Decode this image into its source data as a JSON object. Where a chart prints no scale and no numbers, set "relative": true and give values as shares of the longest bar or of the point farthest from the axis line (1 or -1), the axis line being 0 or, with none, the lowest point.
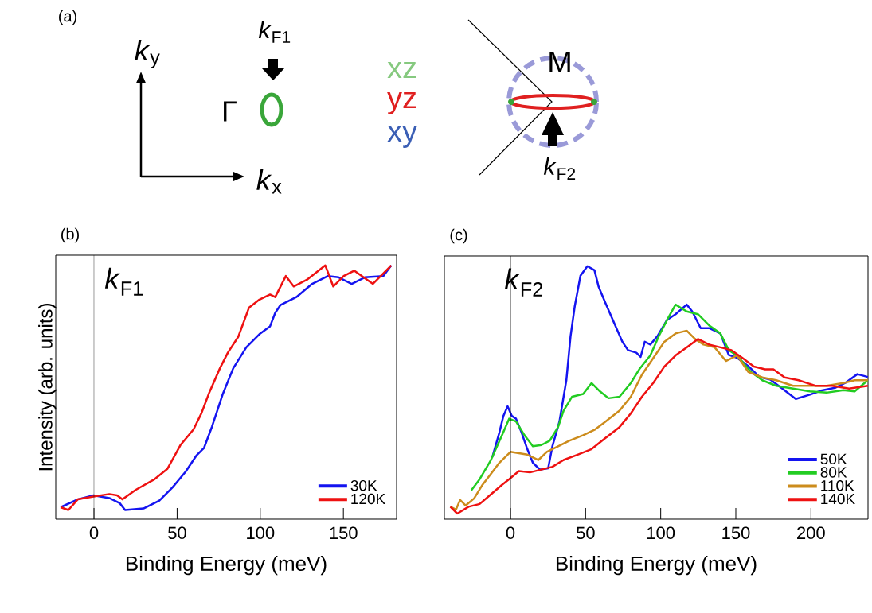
{
  "chart_data": [
    {
      "type": "other",
      "title": "(a)",
      "annotations": [
        "*k*$_{y}$",
        "*k*$_{x}$",
        "Γ",
        "*k*$_{F1}$",
        "xz",
        "yz",
        "xy",
        "M",
        "*k*$_{F2}$"
      ]
    },
    {
      "type": "line",
      "title": "(b)",
      "xlabel": "Binding Energy (meV)",
      "ylabel": "Intensity (arb. units)",
      "relative": true,
      "xlim": [
        -23,
        182
      ],
      "xticks": [
        0,
        50,
        100,
        150
      ],
      "ref_lines": [
        {
          "axis": "x",
          "value": 0
        }
      ],
      "annotations": [
        "*k*$_{F1}$"
      ],
      "legend": "bottom right",
      "series": [
        {
          "name": "30K",
          "color": "#1414f0",
          "x": [
            -20.1,
            -9.8,
            -0.3,
            9.2,
            15.5,
            18.7,
            29.8,
            39.3,
            47.2,
            55.2,
            61.5,
            66.2,
            71.0,
            77.3,
            83.7,
            91.6,
            99.5,
            105.9,
            109.0,
            112.2,
            121.7,
            131.2,
            140.7,
            147.1,
            155.0,
            162.9,
            174.0,
            178.8
          ],
          "values": [
            0.047,
            0.078,
            0.094,
            0.083,
            0.063,
            0.036,
            0.042,
            0.073,
            0.125,
            0.188,
            0.25,
            0.281,
            0.365,
            0.49,
            0.594,
            0.677,
            0.729,
            0.76,
            0.813,
            0.844,
            0.875,
            0.927,
            0.958,
            0.953,
            0.927,
            0.953,
            0.958,
            1.0
          ]
        },
        {
          "name": "120K",
          "color": "#ee1111",
          "x": [
            -20.1,
            -15.4,
            -9.8,
            -0.3,
            9.2,
            13.9,
            17.1,
            25.0,
            36.1,
            44.1,
            52.0,
            59.9,
            64.6,
            69.4,
            75.7,
            80.5,
            86.8,
            93.2,
            99.5,
            105.9,
            109.0,
            115.4,
            120.1,
            128.0,
            139.1,
            143.9,
            150.2,
            156.6,
            167.7,
            178.8
          ],
          "values": [
            0.047,
            0.036,
            0.078,
            0.089,
            0.099,
            0.094,
            0.078,
            0.115,
            0.156,
            0.198,
            0.292,
            0.354,
            0.417,
            0.5,
            0.594,
            0.656,
            0.719,
            0.833,
            0.865,
            0.885,
            0.875,
            0.958,
            0.917,
            0.943,
            1.0,
            0.917,
            0.958,
            0.979,
            0.927,
            1.0
          ]
        }
      ]
    },
    {
      "type": "line",
      "title": "(c)",
      "xlabel": "Binding Energy (meV)",
      "relative": true,
      "xlim": [
        -44,
        238
      ],
      "xticks": [
        0,
        50,
        100,
        150,
        200
      ],
      "ref_lines": [
        {
          "axis": "x",
          "value": 0
        }
      ],
      "annotations": [
        "*k*$_{F2}$"
      ],
      "legend": "bottom right",
      "series": [
        {
          "name": "50K",
          "color": "#1414f0",
          "x": [
            -12.1,
            -7.4,
            -4.7,
            -1.9,
            0.9,
            3.7,
            7.4,
            11.2,
            14.9,
            19.6,
            25.1,
            27.9,
            32.6,
            37.2,
            40.0,
            42.8,
            46.6,
            51.2,
            55.9,
            58.7,
            63.3,
            68.9,
            74.5,
            78.2,
            83.8,
            86.6,
            89.4,
            93.1,
            97.8,
            104.3,
            109.9,
            117.3,
            121.0,
            126.6,
            132.2,
            139.7,
            145.3,
            150.8,
            158.3,
            165.7,
            173.2,
            180.6,
            189.9,
            199.3,
            206.7,
            216.0,
            223.5,
            230.9,
            237.9
          ],
          "values": [
            0.245,
            0.342,
            0.408,
            0.446,
            0.408,
            0.397,
            0.342,
            0.277,
            0.223,
            0.196,
            0.201,
            0.288,
            0.386,
            0.549,
            0.723,
            0.842,
            0.962,
            1.0,
            0.984,
            0.918,
            0.853,
            0.777,
            0.701,
            0.668,
            0.658,
            0.641,
            0.701,
            0.69,
            0.723,
            0.788,
            0.81,
            0.848,
            0.821,
            0.755,
            0.755,
            0.734,
            0.649,
            0.638,
            0.605,
            0.562,
            0.551,
            0.518,
            0.475,
            0.492,
            0.508,
            0.519,
            0.541,
            0.573,
            0.562
          ]
        },
        {
          "name": "80K",
          "color": "#22cc22",
          "x": [
            -26.1,
            -20.5,
            -13.0,
            -5.6,
            -0.9,
            3.7,
            9.3,
            14.9,
            20.5,
            26.1,
            31.7,
            35.4,
            41.0,
            48.4,
            54.0,
            59.6,
            65.2,
            72.6,
            80.1,
            85.7,
            93.1,
            98.7,
            104.3,
            109.9,
            117.3,
            124.8,
            132.2,
            139.7,
            145.3,
            150.8,
            160.1,
            167.6,
            176.9,
            188.1,
            199.3,
            210.4,
            221.6,
            229.1,
            237.9
          ],
          "values": [
            0.114,
            0.158,
            0.234,
            0.332,
            0.397,
            0.386,
            0.332,
            0.288,
            0.293,
            0.31,
            0.364,
            0.429,
            0.484,
            0.495,
            0.538,
            0.505,
            0.478,
            0.484,
            0.538,
            0.592,
            0.647,
            0.723,
            0.788,
            0.848,
            0.821,
            0.81,
            0.766,
            0.734,
            0.668,
            0.647,
            0.582,
            0.549,
            0.527,
            0.516,
            0.505,
            0.5,
            0.51,
            0.505,
            0.549
          ]
        },
        {
          "name": "110K",
          "color": "#cc8c1c",
          "x": [
            -40.0,
            -36.3,
            -33.5,
            -29.8,
            -24.2,
            -18.6,
            -13.0,
            -7.4,
            0,
            5.6,
            11.2,
            18.6,
            24.2,
            31.7,
            39.1,
            48.4,
            55.9,
            63.3,
            72.6,
            80.1,
            87.5,
            95.0,
            102.4,
            109.9,
            117.3,
            122.9,
            128.5,
            135.9,
            143.4,
            150.8,
            158.3,
            167.6,
            176.9,
            188.1,
            199.3,
            210.4,
            221.6,
            229.1,
            237.9
          ],
          "values": [
            0.049,
            0.038,
            0.076,
            0.054,
            0.082,
            0.136,
            0.179,
            0.223,
            0.266,
            0.261,
            0.255,
            0.234,
            0.266,
            0.288,
            0.31,
            0.332,
            0.353,
            0.386,
            0.429,
            0.484,
            0.571,
            0.636,
            0.701,
            0.734,
            0.745,
            0.712,
            0.69,
            0.679,
            0.625,
            0.647,
            0.582,
            0.56,
            0.549,
            0.527,
            0.527,
            0.527,
            0.538,
            0.549,
            0.549
          ]
        },
        {
          "name": "140K",
          "color": "#ee1111",
          "x": [
            -40.0,
            -35.4,
            -27.9,
            -20.5,
            -13.0,
            -5.6,
            -0.9,
            5.6,
            13.0,
            20.5,
            27.9,
            35.4,
            44.7,
            54.0,
            63.3,
            72.6,
            80.1,
            87.5,
            95.0,
            102.4,
            109.9,
            117.3,
            124.8,
            132.2,
            139.7,
            147.1,
            154.6,
            162.0,
            169.5,
            175.0,
            182.5,
            191.8,
            203.0,
            214.2,
            225.4,
            237.9
          ],
          "values": [
            0.049,
            0.022,
            0.049,
            0.06,
            0.098,
            0.136,
            0.158,
            0.19,
            0.185,
            0.196,
            0.207,
            0.234,
            0.255,
            0.277,
            0.321,
            0.364,
            0.418,
            0.484,
            0.538,
            0.603,
            0.647,
            0.679,
            0.712,
            0.69,
            0.679,
            0.668,
            0.636,
            0.603,
            0.592,
            0.592,
            0.56,
            0.549,
            0.527,
            0.527,
            0.516,
            0.527
          ]
        }
      ]
    }
  ]
}
